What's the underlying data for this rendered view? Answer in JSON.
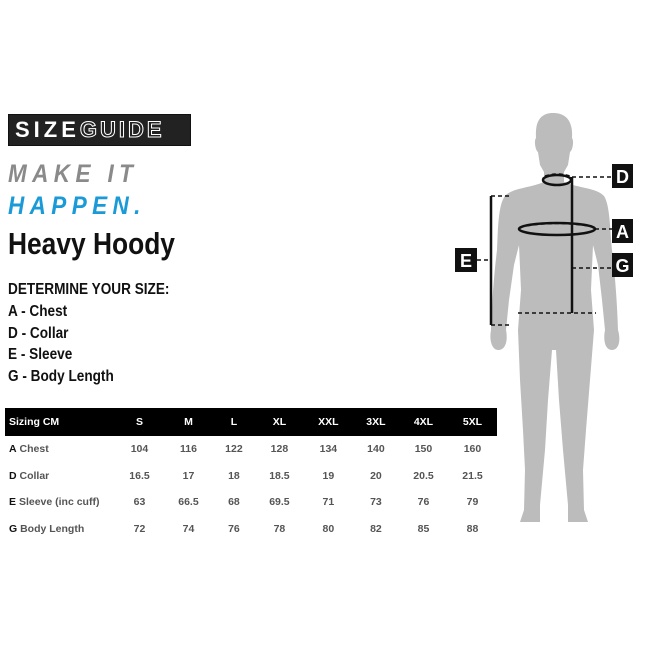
{
  "logo": {
    "part1": "SIZE",
    "part2": "GUIDE"
  },
  "tagline": {
    "line1": "MAKE IT",
    "line2": "HAPPEN.",
    "color1": "#8a8a8a",
    "color2": "#1a9ad6"
  },
  "product_title": "Heavy Hoody",
  "determine": {
    "heading": "DETERMINE YOUR SIZE:",
    "items": [
      "A - Chest",
      "D - Collar",
      "E - Sleeve",
      "G - Body Length"
    ]
  },
  "table": {
    "header": [
      "Sizing CM",
      "S",
      "M",
      "L",
      "XL",
      "XXL",
      "3XL",
      "4XL",
      "5XL"
    ],
    "rows": [
      {
        "letter": "A",
        "label": "Chest",
        "values": [
          "104",
          "116",
          "122",
          "128",
          "134",
          "140",
          "150",
          "160"
        ]
      },
      {
        "letter": "D",
        "label": "Collar",
        "values": [
          "16.5",
          "17",
          "18",
          "18.5",
          "19",
          "20",
          "20.5",
          "21.5"
        ]
      },
      {
        "letter": "E",
        "label": "Sleeve (inc cuff)",
        "values": [
          "63",
          "66.5",
          "68",
          "69.5",
          "71",
          "73",
          "76",
          "79"
        ]
      },
      {
        "letter": "G",
        "label": "Body Length",
        "values": [
          "72",
          "74",
          "76",
          "78",
          "80",
          "82",
          "85",
          "88"
        ]
      }
    ]
  },
  "diagram": {
    "labels": {
      "D": "D",
      "A": "A",
      "G": "G",
      "E": "E"
    },
    "figure_color": "#bcbcbc"
  }
}
